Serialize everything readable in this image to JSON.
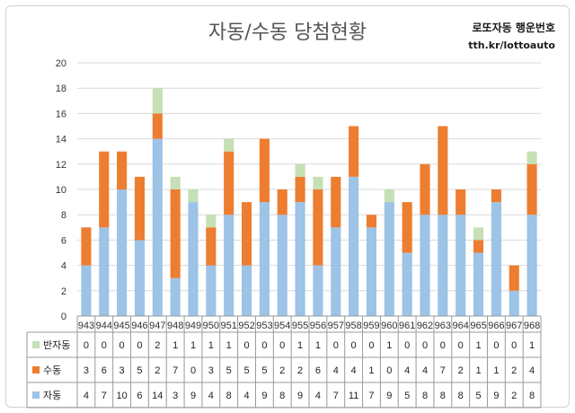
{
  "header": {
    "title": "자동/수동 당첨현황",
    "brand": "로또자동 행운번호",
    "url": "tth.kr/lottoauto"
  },
  "colors": {
    "auto": "#9DC3E6",
    "manual": "#ED7D31",
    "semi": "#C5E0B4",
    "grid": "#d9d9d9",
    "axis": "#999999"
  },
  "chart_data": {
    "type": "bar",
    "stacked": true,
    "title": "자동/수동 당첨현황",
    "categories": [
      "943",
      "944",
      "945",
      "946",
      "947",
      "948",
      "949",
      "950",
      "951",
      "952",
      "953",
      "954",
      "955",
      "956",
      "957",
      "958",
      "959",
      "960",
      "961",
      "962",
      "963",
      "964",
      "965",
      "966",
      "967",
      "968"
    ],
    "series": [
      {
        "name": "자동",
        "values": [
          4,
          7,
          10,
          6,
          14,
          3,
          9,
          4,
          8,
          4,
          9,
          8,
          9,
          4,
          7,
          11,
          7,
          9,
          5,
          8,
          8,
          8,
          5,
          9,
          2,
          8
        ]
      },
      {
        "name": "수동",
        "values": [
          3,
          6,
          3,
          5,
          2,
          7,
          0,
          3,
          5,
          5,
          5,
          2,
          2,
          6,
          4,
          4,
          1,
          0,
          4,
          4,
          7,
          2,
          1,
          1,
          2,
          4
        ]
      },
      {
        "name": "반자동",
        "values": [
          0,
          0,
          0,
          0,
          2,
          1,
          1,
          1,
          1,
          0,
          0,
          0,
          1,
          1,
          0,
          0,
          0,
          1,
          0,
          0,
          0,
          0,
          1,
          0,
          0,
          1
        ]
      }
    ],
    "ylim": [
      0,
      20
    ],
    "yticks": [
      "0",
      "2",
      "4",
      "6",
      "8",
      "10",
      "12",
      "14",
      "16",
      "18",
      "20"
    ],
    "grid": true,
    "legend": "data-table-below"
  }
}
